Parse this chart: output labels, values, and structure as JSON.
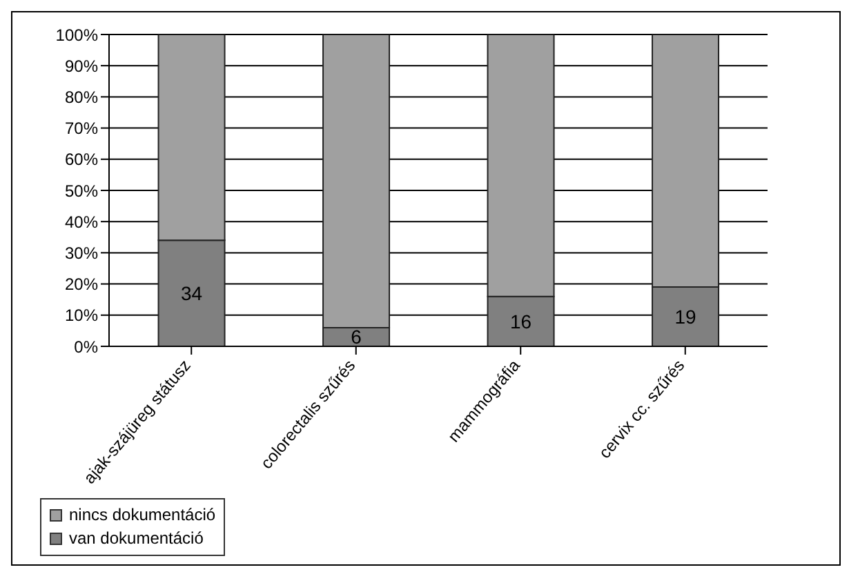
{
  "chart_data": {
    "type": "bar",
    "stacked": true,
    "categories": [
      "ajak-szájüreg státusz",
      "colorectalis szűrés",
      "mammográfia",
      "cervix cc. szűrés"
    ],
    "series": [
      {
        "name": "van dokumentáció",
        "color": "#808080",
        "values": [
          34,
          6,
          16,
          19
        ],
        "value_labels": [
          "34",
          "6",
          "16",
          "19"
        ]
      },
      {
        "name": "nincs dokumentáció",
        "color": "#a0a0a0",
        "values": [
          66,
          94,
          84,
          81
        ]
      }
    ],
    "ylim": [
      0,
      100
    ],
    "yticks": [
      {
        "value": 0,
        "label": "0%"
      },
      {
        "value": 10,
        "label": "10%"
      },
      {
        "value": 20,
        "label": "20%"
      },
      {
        "value": 30,
        "label": "30%"
      },
      {
        "value": 40,
        "label": "40%"
      },
      {
        "value": 50,
        "label": "50%"
      },
      {
        "value": 60,
        "label": "60%"
      },
      {
        "value": 70,
        "label": "70%"
      },
      {
        "value": 80,
        "label": "80%"
      },
      {
        "value": 90,
        "label": "90%"
      },
      {
        "value": 100,
        "label": "100%"
      }
    ],
    "grid": "y",
    "legend": "bottom"
  }
}
